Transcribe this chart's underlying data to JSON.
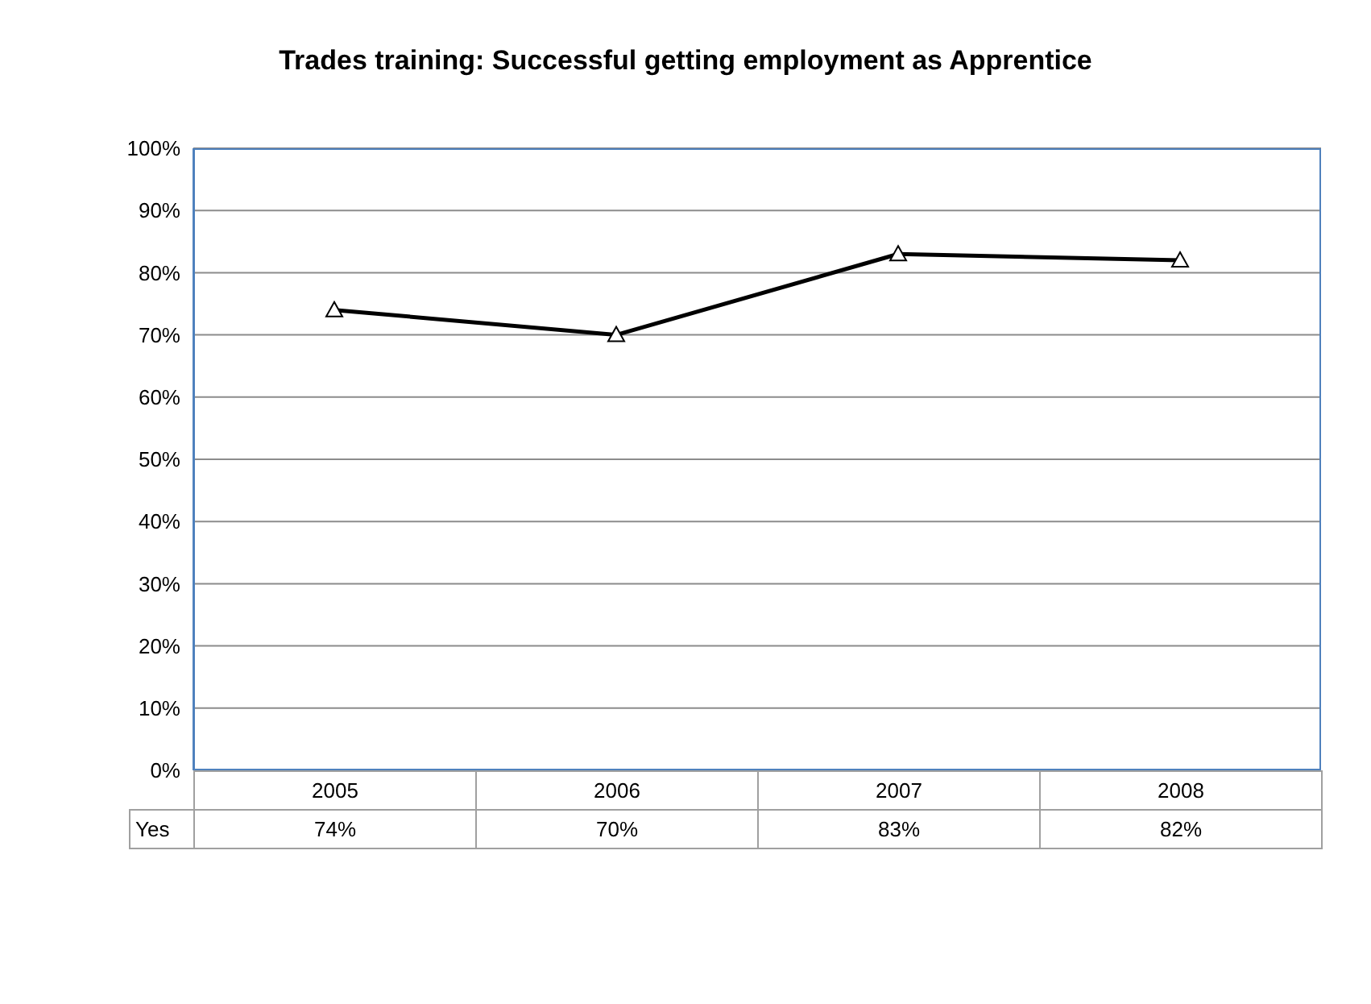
{
  "chart_data": {
    "type": "line",
    "title": "Trades training: Successful getting employment as Apprentice",
    "categories": [
      "2005",
      "2006",
      "2007",
      "2008"
    ],
    "series": [
      {
        "name": "Yes",
        "color": "#000000",
        "values": [
          74,
          70,
          83,
          82
        ],
        "value_labels": [
          "74%",
          "70%",
          "83%",
          "82%"
        ]
      }
    ],
    "ylim": [
      0,
      100
    ],
    "yticks": [
      {
        "value": 0,
        "label": "0%"
      },
      {
        "value": 10,
        "label": "10%"
      },
      {
        "value": 20,
        "label": "20%"
      },
      {
        "value": 30,
        "label": "30%"
      },
      {
        "value": 40,
        "label": "40%"
      },
      {
        "value": 50,
        "label": "50%"
      },
      {
        "value": 60,
        "label": "60%"
      },
      {
        "value": 70,
        "label": "70%"
      },
      {
        "value": 80,
        "label": "80%"
      },
      {
        "value": 90,
        "label": "90%"
      },
      {
        "value": 100,
        "label": "100%"
      }
    ],
    "grid": "y",
    "marker": "triangle",
    "line_style": "solid"
  }
}
